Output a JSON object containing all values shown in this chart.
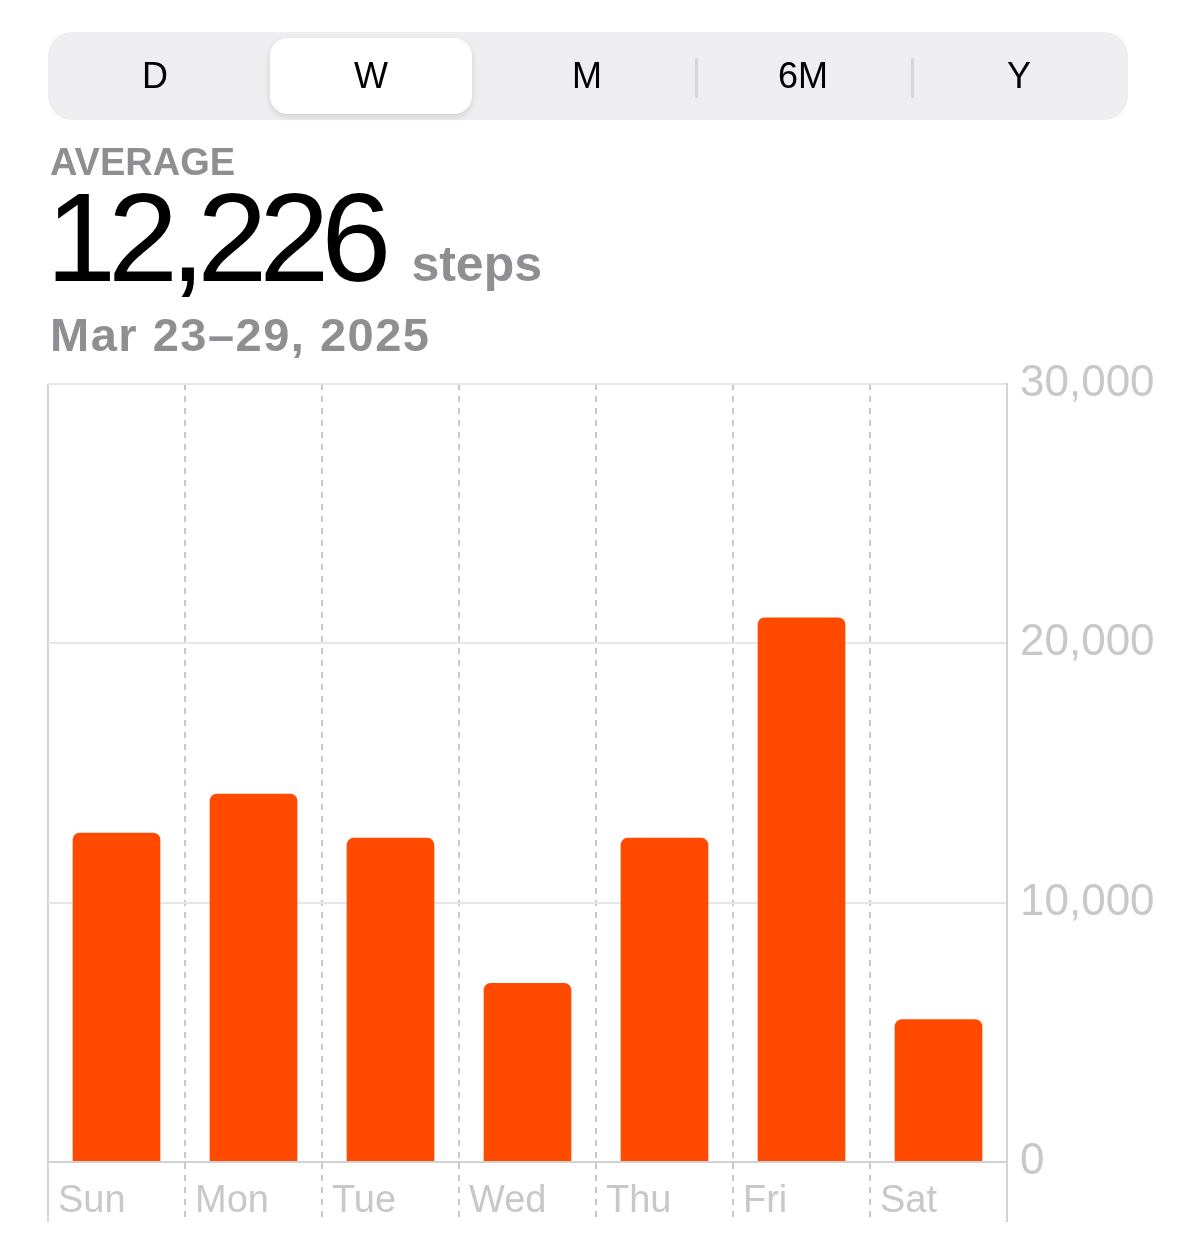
{
  "chart_data": {
    "type": "bar",
    "title": "AVERAGE",
    "subtitle": "12,226 steps",
    "annotations": [
      "D",
      "W",
      "M",
      "6M",
      "Y",
      "Mar 23–29, 2025"
    ],
    "categories": [
      "Sun",
      "Mon",
      "Tue",
      "Wed",
      "Thu",
      "Fri",
      "Sat"
    ],
    "values": [
      12700,
      14200,
      12500,
      6900,
      12500,
      21000,
      5500
    ],
    "color": "#ff4a00",
    "ylim": [
      0,
      30000
    ],
    "yticks": [
      0,
      {
        "value": 10000,
        "label": "10,000"
      },
      {
        "value": 20000,
        "label": "20,000"
      },
      {
        "value": 30000,
        "label": "30,000"
      }
    ],
    "grid": true,
    "legend": false
  }
}
